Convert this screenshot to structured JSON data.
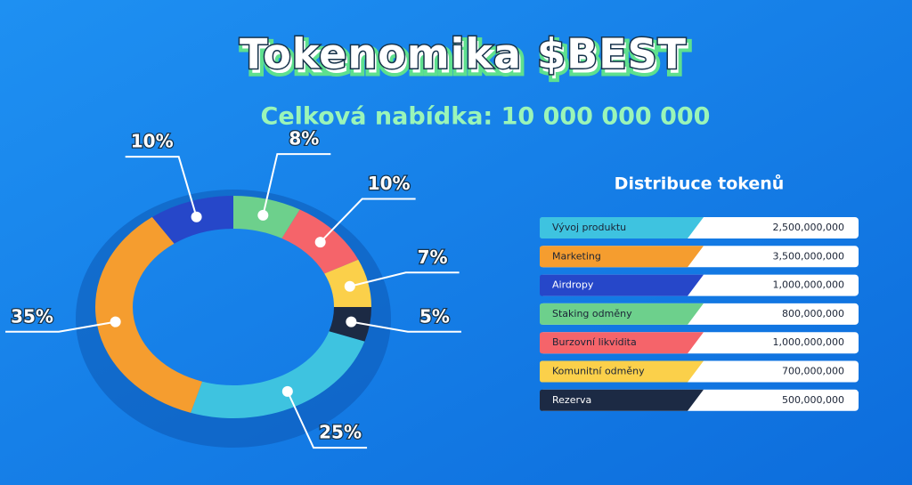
{
  "chart_data": {
    "type": "pie",
    "title": "Tokenomika $BEST",
    "subtitle": "Celková nabídka: 10 000 000 000",
    "legend_title": "Distribuce tokenů",
    "categories": [
      "Vývoj produktu",
      "Marketing",
      "Airdropy",
      "Staking odměny",
      "Burzovní likvidita",
      "Komunitní odměny",
      "Rezerva"
    ],
    "values": [
      25,
      35,
      10,
      8,
      10,
      7,
      5
    ],
    "value_labels": [
      "25%",
      "35%",
      "10%",
      "8%",
      "10%",
      "7%",
      "5%"
    ],
    "amounts": [
      "2,500,000,000",
      "3,500,000,000",
      "1,000,000,000",
      "800,000,000",
      "1,000,000,000",
      "700,000,000",
      "500,000,000"
    ],
    "colors": [
      "#3ec3e0",
      "#f59d2f",
      "#2647c9",
      "#6dd08c",
      "#f5646a",
      "#fbd04a",
      "#1c2a44"
    ]
  }
}
